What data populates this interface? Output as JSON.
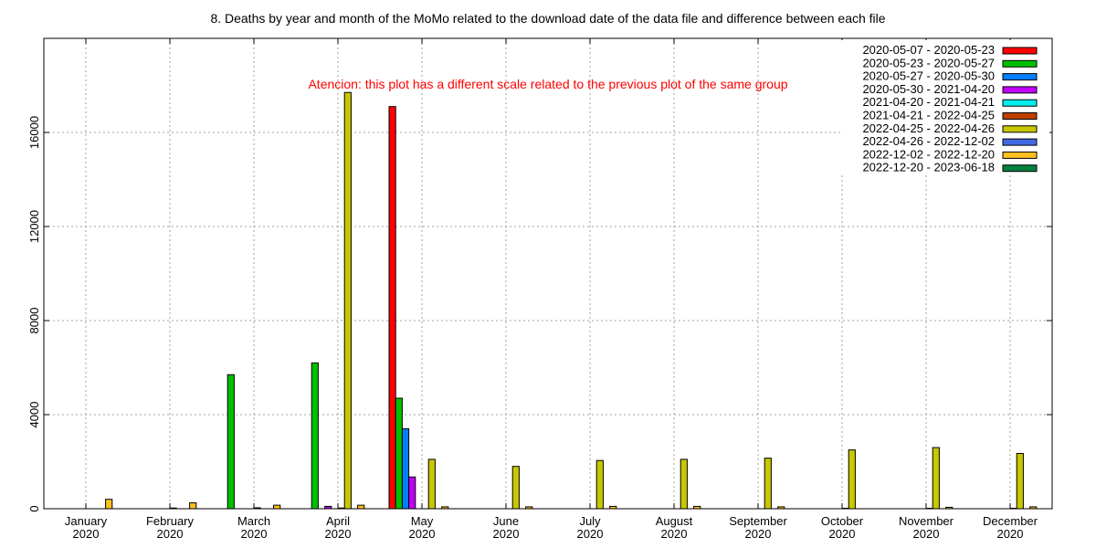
{
  "chart_data": {
    "type": "bar",
    "title": "8. Deaths by year and month of the MoMo related to the download date of the data file and difference between each file",
    "annotation": {
      "text": "Atencion: this plot has a different scale related to the previous plot of the same group",
      "color": "#ff0000"
    },
    "xlabel": "",
    "ylabel": "",
    "ylim": [
      0,
      20000
    ],
    "yticks": [
      {
        "value": 0,
        "label": "0"
      },
      {
        "value": 4000,
        "label": "4000"
      },
      {
        "value": 8000,
        "label": "8000"
      },
      {
        "value": 12000,
        "label": "12000"
      },
      {
        "value": 16000,
        "label": "16000"
      }
    ],
    "grid": true,
    "legend_position": "top-right",
    "categories": [
      {
        "month": "January",
        "year": "2020"
      },
      {
        "month": "February",
        "year": "2020"
      },
      {
        "month": "March",
        "year": "2020"
      },
      {
        "month": "April",
        "year": "2020"
      },
      {
        "month": "May",
        "year": "2020"
      },
      {
        "month": "June",
        "year": "2020"
      },
      {
        "month": "July",
        "year": "2020"
      },
      {
        "month": "August",
        "year": "2020"
      },
      {
        "month": "September",
        "year": "2020"
      },
      {
        "month": "October",
        "year": "2020"
      },
      {
        "month": "November",
        "year": "2020"
      },
      {
        "month": "December",
        "year": "2020"
      }
    ],
    "series": [
      {
        "name": "2020-05-07 - 2020-05-23",
        "color": "#ff0000",
        "values": [
          0,
          0,
          0,
          0,
          17100,
          0,
          0,
          0,
          0,
          0,
          0,
          0
        ]
      },
      {
        "name": "2020-05-23 - 2020-05-27",
        "color": "#00c000",
        "values": [
          0,
          0,
          5700,
          6200,
          4700,
          0,
          0,
          0,
          0,
          0,
          0,
          0
        ]
      },
      {
        "name": "2020-05-27 - 2020-05-30",
        "color": "#0080ff",
        "values": [
          0,
          0,
          0,
          0,
          3400,
          0,
          0,
          0,
          0,
          0,
          0,
          0
        ]
      },
      {
        "name": "2020-05-30 - 2021-04-20",
        "color": "#c000ff",
        "values": [
          0,
          0,
          0,
          100,
          1350,
          0,
          0,
          0,
          0,
          0,
          0,
          0
        ]
      },
      {
        "name": "2021-04-20 - 2021-04-21",
        "color": "#00eeee",
        "values": [
          0,
          0,
          0,
          0,
          0,
          0,
          0,
          0,
          0,
          0,
          0,
          0
        ]
      },
      {
        "name": "2021-04-21 - 2022-04-25",
        "color": "#c04000",
        "values": [
          0,
          30,
          40,
          30,
          0,
          0,
          0,
          0,
          0,
          20,
          20,
          20
        ]
      },
      {
        "name": "2022-04-25 - 2022-04-26",
        "color": "#c8c800",
        "values": [
          0,
          0,
          0,
          17700,
          2100,
          1800,
          2050,
          2100,
          2150,
          2500,
          2600,
          2350
        ]
      },
      {
        "name": "2022-04-26 - 2022-12-02",
        "color": "#4169e1",
        "values": [
          0,
          0,
          0,
          0,
          0,
          0,
          0,
          0,
          0,
          0,
          0,
          0
        ]
      },
      {
        "name": "2022-12-02 - 2022-12-20",
        "color": "#ffc020",
        "values": [
          400,
          250,
          150,
          150,
          80,
          80,
          100,
          100,
          80,
          0,
          60,
          80
        ]
      },
      {
        "name": "2022-12-20 - 2023-06-18",
        "color": "#008040",
        "values": [
          0,
          0,
          0,
          0,
          0,
          0,
          0,
          0,
          0,
          0,
          0,
          0
        ]
      }
    ]
  }
}
